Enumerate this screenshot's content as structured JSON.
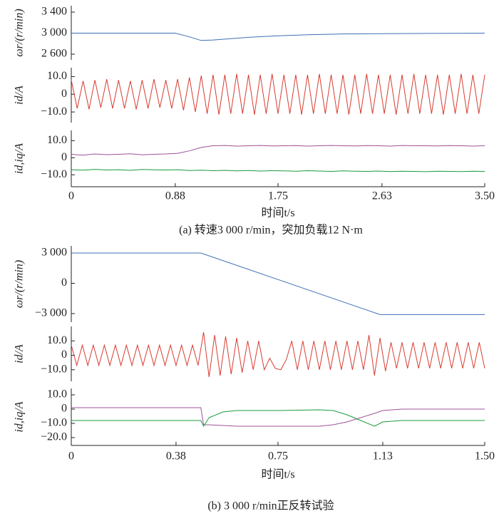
{
  "chart_data": [
    {
      "type": "line",
      "ylabel": "ωr/(r/min)",
      "xlim": [
        0,
        3.5
      ],
      "ylim": [
        2492,
        3522
      ],
      "yticks": [
        {
          "value": 2600,
          "label": "2 600"
        },
        {
          "value": 3000,
          "label": "3 000"
        },
        {
          "value": 3400,
          "label": "3 400"
        }
      ],
      "x": [
        0,
        0.5,
        0.88,
        1.0,
        1.1,
        1.2,
        1.5,
        1.75,
        2.0,
        2.3,
        2.63,
        3.0,
        3.5
      ],
      "series": [
        {
          "color": "#3d6fb5",
          "values": [
            3000,
            3000,
            3000,
            2930,
            2860,
            2870,
            2920,
            2950,
            2970,
            2985,
            2990,
            2995,
            3000
          ]
        }
      ]
    },
    {
      "type": "line",
      "ylabel": "id/A",
      "xlim": [
        0,
        3.5
      ],
      "ylim": [
        -16,
        15
      ],
      "yticks": [
        {
          "value": -10,
          "label": "−10.0"
        },
        0,
        {
          "value": 10,
          "label": "10.0"
        }
      ],
      "x": [
        0,
        0.05,
        0.1,
        0.15,
        0.2,
        0.25,
        0.3,
        0.35,
        0.4,
        0.45,
        0.5,
        0.55,
        0.6,
        0.65,
        0.7,
        0.75,
        0.8,
        0.85,
        0.9,
        0.95,
        1.0,
        1.05,
        1.1,
        1.15,
        1.2,
        1.25,
        1.3,
        1.35,
        1.4,
        1.45,
        1.5,
        1.55,
        1.6,
        1.65,
        1.7,
        1.75,
        1.8,
        1.85,
        1.9,
        1.95,
        2.0,
        2.05,
        2.1,
        2.15,
        2.2,
        2.25,
        2.3,
        2.35,
        2.4,
        2.45,
        2.5,
        2.55,
        2.6,
        2.65,
        2.7,
        2.75,
        2.8,
        2.85,
        2.9,
        2.95,
        3.0,
        3.05,
        3.1,
        3.15,
        3.2,
        3.25,
        3.3,
        3.35,
        3.4,
        3.45,
        3.5
      ],
      "series": [
        {
          "color": "#d83b2f",
          "values": [
            8,
            -8,
            7.5,
            -8.5,
            8,
            -7.5,
            8.5,
            -8,
            8,
            -8,
            7.5,
            -8.5,
            8,
            -8,
            8.5,
            -7.5,
            8,
            -8,
            8.5,
            -9,
            9.5,
            -10,
            10.5,
            -11,
            11,
            -11.5,
            11,
            -11,
            11.5,
            -11,
            11,
            -11.5,
            11,
            -11,
            11.5,
            -11,
            11,
            -11,
            11,
            -11.5,
            11,
            -11,
            11.5,
            -11,
            11,
            -11,
            11,
            -11.5,
            11,
            -11,
            11.5,
            -11,
            11,
            -11,
            11,
            -11.5,
            11,
            -11,
            11.5,
            -11,
            11,
            -11,
            11,
            -11.5,
            11,
            -11,
            11.5,
            -11,
            11,
            -11,
            11
          ]
        }
      ]
    },
    {
      "type": "line",
      "ylabel": "id,iq/A",
      "xlim": [
        0,
        3.5
      ],
      "ylim": [
        -17,
        16
      ],
      "yticks": [
        {
          "value": -10,
          "label": "−10.0"
        },
        0,
        {
          "value": 10,
          "label": "10.0"
        }
      ],
      "xticks": [
        0,
        0.88,
        1.75,
        2.63,
        {
          "value": 3.5,
          "label": "3.50"
        }
      ],
      "xlabel": "时间t/s",
      "caption": "(a) 转速3 000 r/min，突加负载12 N·m",
      "x": [
        0,
        0.1,
        0.2,
        0.3,
        0.4,
        0.5,
        0.6,
        0.7,
        0.8,
        0.9,
        1.0,
        1.1,
        1.2,
        1.3,
        1.4,
        1.5,
        1.6,
        1.7,
        1.8,
        1.9,
        2.0,
        2.1,
        2.2,
        2.3,
        2.4,
        2.5,
        2.6,
        2.7,
        2.8,
        2.9,
        3.0,
        3.1,
        3.2,
        3.3,
        3.4,
        3.5
      ],
      "series": [
        {
          "color": "#a0509b",
          "values": [
            2,
            1.5,
            2.2,
            1.8,
            2,
            2.3,
            1.7,
            2,
            2.2,
            2.6,
            4,
            6,
            7,
            7.2,
            6.8,
            7,
            7.2,
            6.9,
            7,
            7.1,
            6.8,
            7,
            7.2,
            7,
            6.9,
            7.1,
            7,
            6.8,
            7.2,
            7,
            7,
            6.9,
            7.1,
            7,
            6.8,
            7
          ]
        },
        {
          "color": "#1a9b3c",
          "values": [
            -7,
            -7.3,
            -6.8,
            -7.2,
            -7,
            -7.4,
            -6.9,
            -7.1,
            -7.2,
            -7,
            -7.5,
            -7.3,
            -7.6,
            -7.4,
            -7.7,
            -7.5,
            -7.8,
            -7.6,
            -7.7,
            -7.9,
            -7.6,
            -7.8,
            -8,
            -7.7,
            -7.9,
            -8,
            -7.8,
            -8.1,
            -7.9,
            -8,
            -8.2,
            -7.9,
            -8,
            -8.1,
            -7.9,
            -8
          ]
        }
      ]
    },
    {
      "type": "line",
      "ylabel": "ωr/(r/min)",
      "xlim": [
        0,
        1.5
      ],
      "ylim": [
        -3847,
        3706
      ],
      "yticks": [
        {
          "value": -3000,
          "label": "−3 000"
        },
        0,
        {
          "value": 3000,
          "label": "3 000"
        }
      ],
      "x": [
        0,
        0.47,
        1.12,
        1.5
      ],
      "series": [
        {
          "color": "#3d6fb5",
          "values": [
            3000,
            3000,
            -3100,
            -3100
          ]
        }
      ]
    },
    {
      "type": "line",
      "ylabel": "id/A",
      "xlim": [
        0,
        1.5
      ],
      "ylim": [
        -18,
        20
      ],
      "yticks": [
        {
          "value": -10,
          "label": "−10.0"
        },
        0,
        {
          "value": 10,
          "label": "10.0"
        }
      ],
      "x": [
        0,
        0.02,
        0.04,
        0.06,
        0.08,
        0.1,
        0.12,
        0.14,
        0.16,
        0.18,
        0.2,
        0.22,
        0.24,
        0.26,
        0.28,
        0.3,
        0.32,
        0.34,
        0.36,
        0.38,
        0.4,
        0.42,
        0.44,
        0.46,
        0.48,
        0.5,
        0.52,
        0.54,
        0.56,
        0.58,
        0.6,
        0.62,
        0.64,
        0.66,
        0.68,
        0.7,
        0.72,
        0.74,
        0.76,
        0.78,
        0.8,
        0.82,
        0.84,
        0.86,
        0.88,
        0.9,
        0.92,
        0.94,
        0.96,
        0.98,
        1.0,
        1.02,
        1.04,
        1.06,
        1.08,
        1.1,
        1.12,
        1.14,
        1.16,
        1.18,
        1.2,
        1.22,
        1.24,
        1.26,
        1.28,
        1.3,
        1.32,
        1.34,
        1.36,
        1.38,
        1.4,
        1.42,
        1.44,
        1.46,
        1.48,
        1.5
      ],
      "series": [
        {
          "color": "#d83b2f",
          "values": [
            7,
            -7,
            7,
            -7,
            7,
            -7,
            7,
            -7,
            7,
            -7,
            7,
            -7,
            7,
            -7,
            7,
            -7,
            7,
            -7,
            7,
            -7,
            7,
            -7,
            7,
            -7,
            16,
            -15,
            14,
            -14,
            13,
            -13,
            12,
            -12,
            10,
            -10,
            10,
            -10,
            -2,
            -9,
            -10,
            -3,
            10,
            -10,
            10,
            -10,
            10,
            -10,
            10,
            -10,
            10,
            -10,
            10,
            -10,
            10,
            -10,
            14,
            -14,
            12,
            -11,
            9,
            -9,
            9,
            -9,
            9,
            -9,
            9,
            -9,
            9,
            -9,
            9,
            -9,
            9,
            -9,
            9,
            -9,
            9,
            -9
          ]
        }
      ]
    },
    {
      "type": "line",
      "ylabel": "id,iq/A",
      "xlim": [
        0,
        1.5
      ],
      "ylim": [
        -25.5,
        14.5
      ],
      "yticks": [
        {
          "value": -20,
          "label": "−20.0"
        },
        {
          "value": -10,
          "label": "−10.0"
        },
        0,
        {
          "value": 10,
          "label": "10.0"
        }
      ],
      "xticks": [
        0,
        0.38,
        0.75,
        1.13,
        {
          "value": 1.5,
          "label": "1.50"
        }
      ],
      "xlabel": "时间t/s",
      "caption": "(b) 3 000 r/min正反转试验",
      "x": [
        0,
        0.2,
        0.47,
        0.48,
        0.5,
        0.55,
        0.6,
        0.75,
        0.9,
        0.95,
        1.0,
        1.05,
        1.1,
        1.13,
        1.2,
        1.3,
        1.5
      ],
      "series": [
        {
          "color": "#a0509b",
          "values": [
            1,
            1,
            1,
            -11,
            -11,
            -11.5,
            -12,
            -12,
            -12,
            -11,
            -9,
            -6,
            -3,
            -1,
            0,
            0,
            0
          ]
        },
        {
          "color": "#1a9b3c",
          "values": [
            -8,
            -8,
            -8,
            -12,
            -6,
            -2,
            -1,
            -1,
            -0.5,
            -1,
            -4,
            -8,
            -12,
            -9,
            -8,
            -8,
            -8
          ]
        }
      ]
    }
  ]
}
